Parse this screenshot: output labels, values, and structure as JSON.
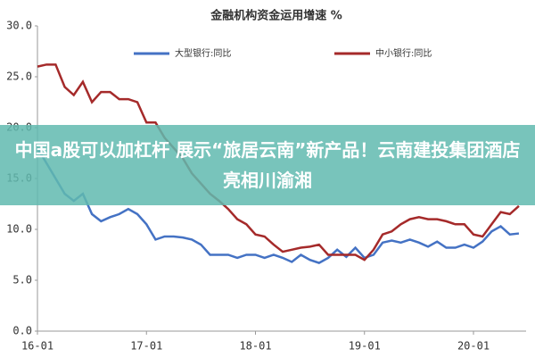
{
  "chart_data": {
    "type": "line",
    "title": "金融机构资金运用增速 %",
    "categories": [
      "16-01",
      null,
      null,
      null,
      null,
      null,
      null,
      null,
      null,
      null,
      null,
      null,
      "17-01",
      null,
      null,
      null,
      null,
      null,
      null,
      null,
      null,
      null,
      null,
      null,
      "18-01",
      null,
      null,
      null,
      null,
      null,
      null,
      null,
      null,
      null,
      null,
      null,
      "19-01",
      null,
      null,
      null,
      null,
      null,
      null,
      null,
      null,
      null,
      null,
      null,
      "20-01",
      null,
      null,
      null,
      null,
      null
    ],
    "series": [
      {
        "name": "大型银行:同比",
        "color": "#4472c4",
        "values": [
          18,
          16.5,
          15,
          13.5,
          12.8,
          13.5,
          11.5,
          10.8,
          11.2,
          11.5,
          12,
          11.5,
          10.5,
          9,
          9.3,
          9.3,
          9.2,
          9,
          8.5,
          7.5,
          7.5,
          7.5,
          7.2,
          7.5,
          7.5,
          7.2,
          7.5,
          7.2,
          6.8,
          7.5,
          7,
          6.7,
          7.2,
          8,
          7.3,
          8.2,
          7.2,
          7.5,
          8.7,
          8.9,
          8.7,
          9,
          8.7,
          8.3,
          8.8,
          8.2,
          8.2,
          8.5,
          8.2,
          8.8,
          9.8,
          10.3,
          9.5,
          9.6
        ]
      },
      {
        "name": "中小银行:同比",
        "color": "#a52a2a",
        "values": [
          26,
          26.2,
          26.2,
          24,
          23.2,
          24.5,
          22.5,
          23.5,
          23.5,
          22.8,
          22.8,
          22.5,
          20.5,
          20.5,
          19,
          18,
          17,
          15.5,
          14.5,
          13.5,
          12.8,
          12,
          11,
          10.5,
          9.5,
          9.3,
          8.5,
          7.8,
          8,
          8.2,
          8.3,
          8.5,
          7.5,
          7.5,
          7.5,
          7.5,
          7,
          8,
          9.5,
          9.8,
          10.5,
          11,
          11.2,
          11,
          11,
          10.8,
          10.5,
          10.5,
          9.5,
          9.3,
          10.5,
          11.7,
          11.5,
          12.3
        ]
      }
    ],
    "ylim": [
      0,
      30
    ],
    "yticks": [
      {
        "value": 0,
        "label": "0.0"
      },
      {
        "value": 5,
        "label": "5.0"
      },
      {
        "value": 10,
        "label": "10.0"
      },
      {
        "value": 15,
        "label": "15.0"
      },
      {
        "value": 20,
        "label": "20.0"
      },
      {
        "value": 25,
        "label": "25.0"
      },
      {
        "value": 30,
        "label": "30.0"
      }
    ],
    "grid": false
  },
  "overlay": {
    "headline": "中国a股可以加杠杆 展示“旅居云南”新产品！云南建投集团酒店亮相川渝湘"
  }
}
